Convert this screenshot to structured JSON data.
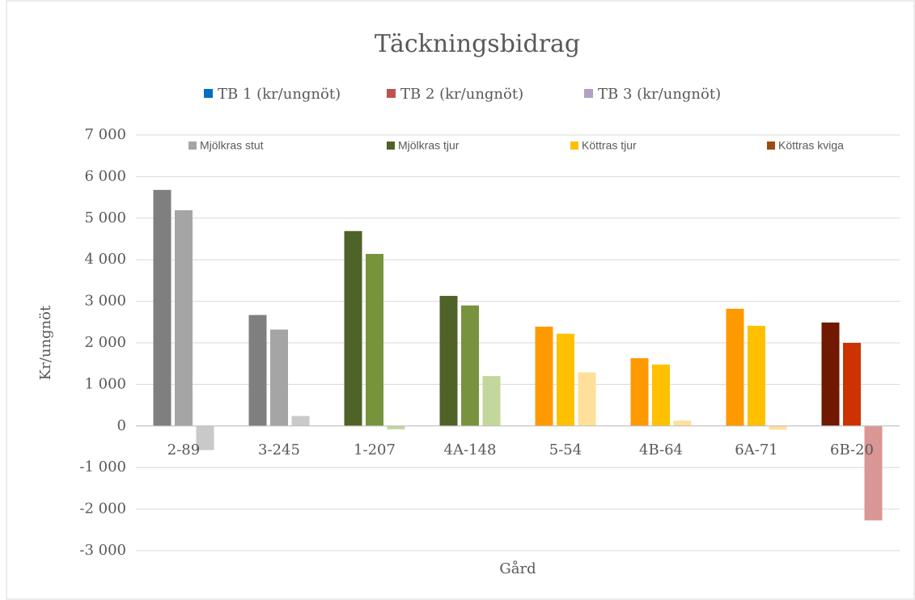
{
  "chart_data": {
    "type": "bar",
    "title": "Täckningsbidrag",
    "x_label": "Gård",
    "y_label": "Kr/ungnöt",
    "categories": [
      "2-89",
      "3-245",
      "1-207",
      "4A-148",
      "5-54",
      "4B-64",
      "6A-71",
      "6B-20"
    ],
    "series": [
      {
        "name": "TB 1 (kr/ungnöt)",
        "color": "#0070c0",
        "values": [
          5680,
          2670,
          4690,
          3130,
          2390,
          1630,
          2820,
          2490
        ],
        "colors": [
          "#7f7f7f",
          "#7f7f7f",
          "#4f6228",
          "#4f6228",
          "#ff9900",
          "#ff9900",
          "#ff9900",
          "#701800"
        ]
      },
      {
        "name": "TB 2 (kr/ungnöt)",
        "color": "#c0504d",
        "values": [
          5190,
          2320,
          4140,
          2900,
          2220,
          1480,
          2410,
          2000
        ],
        "colors": [
          "#a5a5a5",
          "#a5a5a5",
          "#77933c",
          "#77933c",
          "#ffc000",
          "#ffc000",
          "#ffc000",
          "#cc3300"
        ]
      },
      {
        "name": "TB 3 (kr/ungnöt)",
        "color": "#b1a0c7",
        "values": [
          -580,
          240,
          -80,
          1200,
          1290,
          130,
          -90,
          -2270
        ],
        "colors": [
          "#c9c9c9",
          "#c9c9c9",
          "#c3d69b",
          "#c3d69b",
          "#ffe09a",
          "#ffe09a",
          "#ffe09a",
          "#d99694"
        ]
      }
    ],
    "group_legend": [
      {
        "name": "Mjölkras stut",
        "color": "#a5a5a5"
      },
      {
        "name": "Mjölkras tjur",
        "color": "#4f6228"
      },
      {
        "name": "Köttras tjur",
        "color": "#ffc000"
      },
      {
        "name": "Köttras kviga",
        "color": "#9e4a12"
      }
    ],
    "ylim": [
      -3000,
      7000
    ],
    "yticks": [
      {
        "value": -3000,
        "label": "-3 000"
      },
      {
        "value": -2000,
        "label": "-2 000"
      },
      {
        "value": -1000,
        "label": "-1 000"
      },
      0,
      {
        "value": 1000,
        "label": "1 000"
      },
      {
        "value": 2000,
        "label": "2 000"
      },
      {
        "value": 3000,
        "label": "3 000"
      },
      {
        "value": 4000,
        "label": "4 000"
      },
      {
        "value": 5000,
        "label": "5 000"
      },
      {
        "value": 6000,
        "label": "6 000"
      },
      {
        "value": 7000,
        "label": "7 000"
      }
    ],
    "grid": true
  }
}
